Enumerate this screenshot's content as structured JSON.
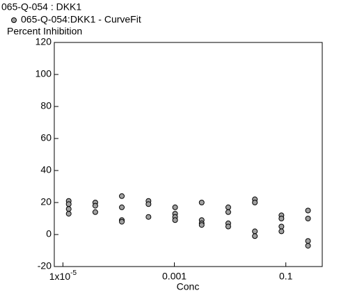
{
  "chart_data": {
    "type": "scatter",
    "title": "065-Q-054  : DKK1",
    "y_label": "Percent Inhibition",
    "x_label": "Conc",
    "log_x": true,
    "xlim": [
      7e-06,
      0.45
    ],
    "ylim": [
      -20,
      120
    ],
    "xticks": [
      {
        "value": 1e-05,
        "label": "1x10",
        "exponent": "-5"
      },
      0.001,
      0.1
    ],
    "yticks": [
      -20,
      0,
      20,
      40,
      60,
      80,
      100,
      120
    ],
    "series": [
      {
        "name": "065-Q-054:DKK1 - CurveFit",
        "color": "#a0a0a0",
        "x": [
          1.27e-05,
          1.27e-05,
          1.27e-05,
          1.27e-05,
          3.81e-05,
          3.81e-05,
          3.81e-05,
          0.000114,
          0.000114,
          0.000114,
          0.000114,
          0.000343,
          0.000343,
          0.000343,
          0.00103,
          0.00103,
          0.00103,
          0.00103,
          0.00309,
          0.00309,
          0.00309,
          0.00309,
          0.00926,
          0.00926,
          0.00926,
          0.00926,
          0.0278,
          0.0278,
          0.0278,
          0.0278,
          0.0833,
          0.0833,
          0.0833,
          0.0833,
          0.25,
          0.25,
          0.25,
          0.25
        ],
        "values": [
          21,
          19,
          16,
          13,
          20,
          18,
          14,
          24,
          17,
          9,
          8,
          21,
          19,
          11,
          17,
          13,
          11,
          9,
          20,
          9,
          7,
          6,
          17,
          14,
          7,
          5,
          22,
          20,
          2,
          -1,
          12,
          10,
          5,
          2,
          15,
          10,
          -4,
          -7
        ]
      }
    ]
  }
}
